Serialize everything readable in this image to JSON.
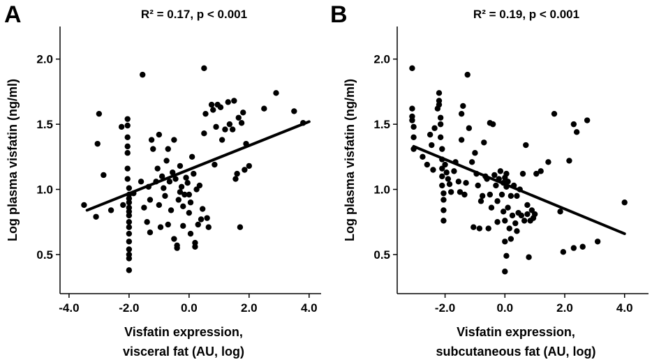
{
  "chart_data": [
    {
      "type": "scatter",
      "panel_label": "A",
      "annotation": "R² = 0.17, p < 0.001",
      "xlabel": [
        "Visfatin expression,",
        "visceral fat (AU, log)"
      ],
      "ylabel": "Log plasma visfatin (ng/ml)",
      "xlim": [
        -4.3,
        4.4
      ],
      "ylim": [
        0.2,
        2.25
      ],
      "xticks": [
        -4.0,
        -2.0,
        0.0,
        2.0,
        4.0
      ],
      "xtick_labels": [
        "-4.0",
        "-2.0",
        "0.0",
        "2.0",
        "4.0"
      ],
      "yticks": [
        0.5,
        1.0,
        1.5,
        2.0
      ],
      "ytick_labels": [
        "0.5",
        "1.0",
        "1.5",
        "2.0"
      ],
      "grid": false,
      "trendline": {
        "x": [
          -3.4,
          4.0
        ],
        "y": [
          0.84,
          1.52
        ]
      },
      "points": [
        [
          -3.5,
          0.88
        ],
        [
          -3.1,
          0.79
        ],
        [
          -3.05,
          1.35
        ],
        [
          -3.0,
          1.58
        ],
        [
          -2.85,
          1.11
        ],
        [
          -2.6,
          0.84
        ],
        [
          -2.25,
          1.48
        ],
        [
          -2.2,
          0.88
        ],
        [
          -2.05,
          1.54
        ],
        [
          -2.05,
          1.49
        ],
        [
          -2.05,
          1.4
        ],
        [
          -2.05,
          1.33
        ],
        [
          -2.05,
          1.28
        ],
        [
          -2.05,
          1.16
        ],
        [
          -2.05,
          1.08
        ],
        [
          -2.0,
          1.01
        ],
        [
          -2.0,
          0.96
        ],
        [
          -2.0,
          0.93
        ],
        [
          -2.0,
          0.9
        ],
        [
          -2.0,
          0.86
        ],
        [
          -2.0,
          0.83
        ],
        [
          -2.0,
          0.8
        ],
        [
          -2.0,
          0.75
        ],
        [
          -2.0,
          0.71
        ],
        [
          -2.0,
          0.66
        ],
        [
          -2.0,
          0.6
        ],
        [
          -2.0,
          0.54
        ],
        [
          -2.0,
          0.5
        ],
        [
          -2.0,
          0.47
        ],
        [
          -2.0,
          0.38
        ],
        [
          -1.85,
          0.97
        ],
        [
          -1.6,
          1.06
        ],
        [
          -1.55,
          1.88
        ],
        [
          -1.5,
          0.86
        ],
        [
          -1.4,
          0.75
        ],
        [
          -1.35,
          1.02
        ],
        [
          -1.3,
          0.92
        ],
        [
          -1.3,
          0.67
        ],
        [
          -1.25,
          1.38
        ],
        [
          -1.2,
          1.31
        ],
        [
          -1.1,
          1.06
        ],
        [
          -1.05,
          1.16
        ],
        [
          -1.0,
          1.42
        ],
        [
          -1.0,
          0.88
        ],
        [
          -0.95,
          0.71
        ],
        [
          -0.9,
          1.1
        ],
        [
          -0.85,
          1.01
        ],
        [
          -0.8,
          0.95
        ],
        [
          -0.75,
          1.22
        ],
        [
          -0.7,
          1.31
        ],
        [
          -0.7,
          0.73
        ],
        [
          -0.65,
          1.06
        ],
        [
          -0.6,
          0.84
        ],
        [
          -0.55,
          1.13
        ],
        [
          -0.5,
          1.38
        ],
        [
          -0.5,
          0.62
        ],
        [
          -0.45,
          1.08
        ],
        [
          -0.4,
          0.57
        ],
        [
          -0.4,
          0.55
        ],
        [
          -0.35,
          0.92
        ],
        [
          -0.3,
          1.18
        ],
        [
          -0.3,
          0.98
        ],
        [
          -0.25,
          1.02
        ],
        [
          -0.2,
          0.87
        ],
        [
          -0.2,
          0.72
        ],
        [
          -0.15,
          0.96
        ],
        [
          -0.1,
          1.09
        ],
        [
          -0.05,
          1.05
        ],
        [
          0.0,
          0.82
        ],
        [
          0.0,
          0.96
        ],
        [
          0.05,
          0.9
        ],
        [
          0.05,
          0.66
        ],
        [
          0.1,
          1.25
        ],
        [
          0.15,
          1.12
        ],
        [
          0.2,
          0.59
        ],
        [
          0.2,
          0.56
        ],
        [
          0.25,
          1.0
        ],
        [
          0.3,
          0.73
        ],
        [
          0.35,
          1.03
        ],
        [
          0.4,
          0.77
        ],
        [
          0.45,
          0.85
        ],
        [
          0.5,
          1.93
        ],
        [
          0.5,
          1.43
        ],
        [
          0.55,
          1.58
        ],
        [
          0.6,
          0.78
        ],
        [
          0.65,
          0.71
        ],
        [
          0.75,
          1.65
        ],
        [
          0.8,
          1.61
        ],
        [
          0.85,
          1.19
        ],
        [
          0.9,
          1.48
        ],
        [
          0.95,
          1.65
        ],
        [
          1.05,
          1.63
        ],
        [
          1.1,
          1.38
        ],
        [
          1.2,
          1.46
        ],
        [
          1.3,
          1.67
        ],
        [
          1.35,
          1.5
        ],
        [
          1.45,
          1.46
        ],
        [
          1.5,
          1.68
        ],
        [
          1.55,
          1.08
        ],
        [
          1.6,
          1.12
        ],
        [
          1.65,
          1.55
        ],
        [
          1.7,
          0.71
        ],
        [
          1.75,
          1.51
        ],
        [
          1.8,
          1.59
        ],
        [
          1.85,
          1.15
        ],
        [
          1.9,
          1.35
        ],
        [
          2.0,
          1.18
        ],
        [
          2.5,
          1.62
        ],
        [
          2.9,
          1.74
        ],
        [
          3.5,
          1.6
        ],
        [
          3.8,
          1.51
        ]
      ]
    },
    {
      "type": "scatter",
      "panel_label": "B",
      "annotation": "R² = 0.19, p < 0.001",
      "xlabel": [
        "Visfatin expression,",
        "subcutaneous fat (AU, log)"
      ],
      "ylabel": "Log plasma visfatin (ng/ml)",
      "xlim": [
        -3.6,
        4.8
      ],
      "ylim": [
        0.2,
        2.25
      ],
      "xticks": [
        -2.0,
        0.0,
        2.0,
        4.0
      ],
      "xtick_labels": [
        "-2.0",
        "0.0",
        "2.0",
        "4.0"
      ],
      "yticks": [
        0.5,
        1.0,
        1.5,
        2.0
      ],
      "ytick_labels": [
        "0.5",
        "1.0",
        "1.5",
        "2.0"
      ],
      "grid": false,
      "trendline": {
        "x": [
          -3.05,
          4.0
        ],
        "y": [
          1.33,
          0.66
        ]
      },
      "points": [
        [
          -3.1,
          1.93
        ],
        [
          -3.1,
          1.62
        ],
        [
          -3.1,
          1.56
        ],
        [
          -3.1,
          1.53
        ],
        [
          -3.05,
          1.48
        ],
        [
          -3.05,
          1.4
        ],
        [
          -3.05,
          1.31
        ],
        [
          -2.75,
          1.25
        ],
        [
          -2.6,
          1.19
        ],
        [
          -2.5,
          1.42
        ],
        [
          -2.45,
          1.34
        ],
        [
          -2.4,
          1.15
        ],
        [
          -2.35,
          1.47
        ],
        [
          -2.25,
          1.62
        ],
        [
          -2.2,
          1.68
        ],
        [
          -2.2,
          1.74
        ],
        [
          -2.2,
          1.65
        ],
        [
          -2.15,
          1.55
        ],
        [
          -2.15,
          1.5
        ],
        [
          -2.15,
          1.4
        ],
        [
          -2.1,
          1.31
        ],
        [
          -2.1,
          1.23
        ],
        [
          -2.1,
          1.16
        ],
        [
          -2.1,
          1.1
        ],
        [
          -2.1,
          1.03
        ],
        [
          -2.05,
          0.97
        ],
        [
          -2.05,
          0.92
        ],
        [
          -2.05,
          0.84
        ],
        [
          -2.05,
          0.76
        ],
        [
          -2.0,
          1.19
        ],
        [
          -1.95,
          1.13
        ],
        [
          -1.9,
          1.08
        ],
        [
          -1.85,
          1.04
        ],
        [
          -1.8,
          0.98
        ],
        [
          -1.7,
          1.14
        ],
        [
          -1.65,
          1.21
        ],
        [
          -1.55,
          1.06
        ],
        [
          -1.5,
          0.98
        ],
        [
          -1.45,
          1.38
        ],
        [
          -1.45,
          1.58
        ],
        [
          -1.4,
          1.64
        ],
        [
          -1.35,
          0.96
        ],
        [
          -1.3,
          1.05
        ],
        [
          -1.25,
          1.88
        ],
        [
          -1.2,
          1.47
        ],
        [
          -1.1,
          1.21
        ],
        [
          -1.05,
          0.71
        ],
        [
          -1.0,
          1.28
        ],
        [
          -0.95,
          1.12
        ],
        [
          -0.9,
          1.03
        ],
        [
          -0.85,
          0.7
        ],
        [
          -0.8,
          0.91
        ],
        [
          -0.75,
          0.95
        ],
        [
          -0.7,
          1.36
        ],
        [
          -0.65,
          1.1
        ],
        [
          -0.6,
          1.08
        ],
        [
          -0.55,
          0.7
        ],
        [
          -0.5,
          1.51
        ],
        [
          -0.5,
          0.96
        ],
        [
          -0.45,
          0.86
        ],
        [
          -0.4,
          1.5
        ],
        [
          -0.35,
          1.11
        ],
        [
          -0.3,
          1.03
        ],
        [
          -0.25,
          0.91
        ],
        [
          -0.25,
          0.75
        ],
        [
          -0.2,
          1.08
        ],
        [
          -0.15,
          1.14
        ],
        [
          -0.1,
          0.96
        ],
        [
          -0.05,
          1.05
        ],
        [
          -0.05,
          0.83
        ],
        [
          0.0,
          1.09
        ],
        [
          0.0,
          0.76
        ],
        [
          0.0,
          0.6
        ],
        [
          0.0,
          0.37
        ],
        [
          0.05,
          1.12
        ],
        [
          0.05,
          1.02
        ],
        [
          0.05,
          0.49
        ],
        [
          0.1,
          1.06
        ],
        [
          0.1,
          0.86
        ],
        [
          0.15,
          0.7
        ],
        [
          0.2,
          0.95
        ],
        [
          0.2,
          0.62
        ],
        [
          0.25,
          0.8
        ],
        [
          0.3,
          1.03
        ],
        [
          0.35,
          0.74
        ],
        [
          0.4,
          0.95
        ],
        [
          0.4,
          0.68
        ],
        [
          0.45,
          0.82
        ],
        [
          0.5,
          1.0
        ],
        [
          0.55,
          0.8
        ],
        [
          0.6,
          1.12
        ],
        [
          0.65,
          0.76
        ],
        [
          0.7,
          1.34
        ],
        [
          0.75,
          0.88
        ],
        [
          0.75,
          0.81
        ],
        [
          0.8,
          0.48
        ],
        [
          0.85,
          0.76
        ],
        [
          0.9,
          0.84
        ],
        [
          0.95,
          0.78
        ],
        [
          1.0,
          0.81
        ],
        [
          1.05,
          1.12
        ],
        [
          1.2,
          1.14
        ],
        [
          1.45,
          1.21
        ],
        [
          1.65,
          1.58
        ],
        [
          1.85,
          0.83
        ],
        [
          1.95,
          0.52
        ],
        [
          2.15,
          1.22
        ],
        [
          2.3,
          0.55
        ],
        [
          2.3,
          1.5
        ],
        [
          2.4,
          1.44
        ],
        [
          2.6,
          0.56
        ],
        [
          2.75,
          1.53
        ],
        [
          3.1,
          0.6
        ],
        [
          4.0,
          0.9
        ]
      ]
    }
  ]
}
